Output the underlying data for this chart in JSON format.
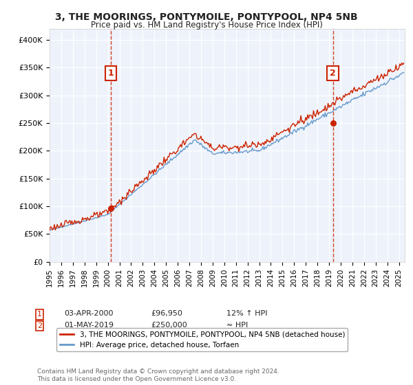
{
  "title1": "3, THE MOORINGS, PONTYMOILE, PONTYPOOL, NP4 5NB",
  "title2": "Price paid vs. HM Land Registry's House Price Index (HPI)",
  "ylabel_ticks": [
    "£0",
    "£50K",
    "£100K",
    "£150K",
    "£200K",
    "£250K",
    "£300K",
    "£350K",
    "£400K"
  ],
  "ytick_vals": [
    0,
    50000,
    100000,
    150000,
    200000,
    250000,
    300000,
    350000,
    400000
  ],
  "ylim": [
    0,
    420000
  ],
  "xlim_start": 1995.0,
  "xlim_end": 2025.5,
  "marker1_x": 2000.25,
  "marker1_price": 96950,
  "marker1_date": "03-APR-2000",
  "marker1_hpi": "12% ↑ HPI",
  "marker2_x": 2019.33,
  "marker2_price": 250000,
  "marker2_date": "01-MAY-2019",
  "marker2_hpi": "≈ HPI",
  "legend_line1": "3, THE MOORINGS, PONTYMOILE, PONTYPOOL, NP4 5NB (detached house)",
  "legend_line2": "HPI: Average price, detached house, Torfaen",
  "footer": "Contains HM Land Registry data © Crown copyright and database right 2024.\nThis data is licensed under the Open Government Licence v3.0.",
  "bg_color": "#eef3fb",
  "grid_color": "#ffffff",
  "hpi_color": "#6699cc",
  "price_color": "#cc2200",
  "marker_box_color": "#cc2200",
  "dashed_line_color": "#cc2200"
}
